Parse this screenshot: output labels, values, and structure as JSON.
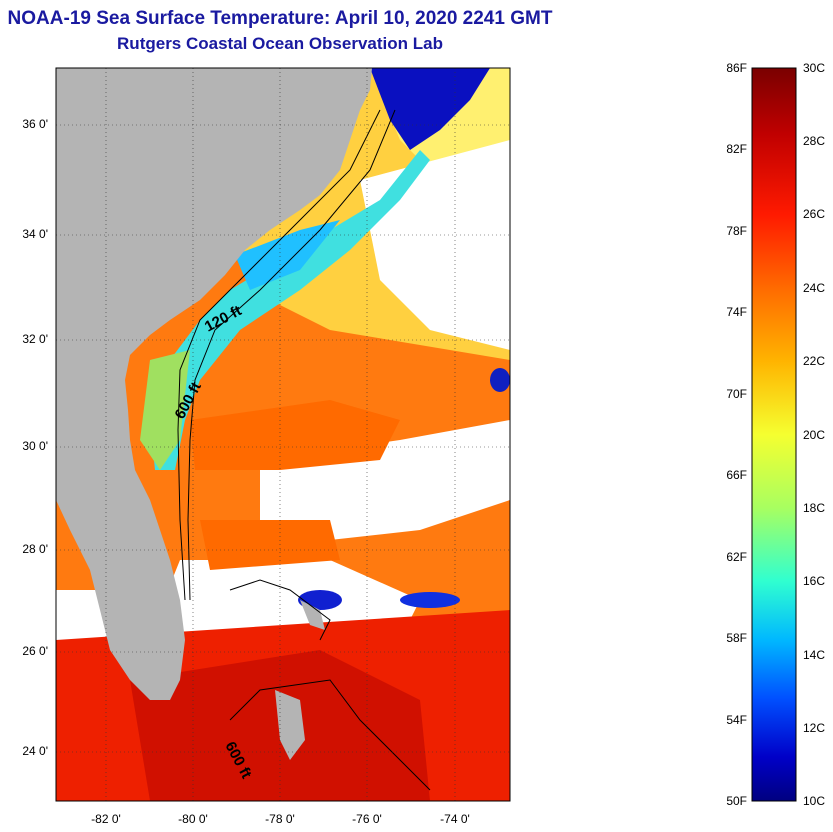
{
  "header": {
    "title": "NOAA-19 Sea Surface Temperature:  April 10, 2020 2241 GMT",
    "subtitle": "Rutgers Coastal Ocean Observation Lab"
  },
  "map": {
    "lat_ticks": [
      "36 0'",
      "34 0'",
      "32 0'",
      "30 0'",
      "28 0'",
      "26 0'",
      "24 0'"
    ],
    "lon_ticks": [
      "-82 0'",
      "-80 0'",
      "-78 0'",
      "-76 0'",
      "-74 0'"
    ],
    "contour_labels": [
      "120 ft",
      "600 ft",
      "600 ft"
    ],
    "land_color": "#b4b4b4",
    "cloud_color": "#ffffff"
  },
  "colorbar": {
    "fahrenheit_labels": [
      "86F",
      "82F",
      "78F",
      "74F",
      "70F",
      "66F",
      "62F",
      "58F",
      "54F",
      "50F"
    ],
    "celsius_labels": [
      "30C",
      "28C",
      "26C",
      "24C",
      "22C",
      "20C",
      "18C",
      "16C",
      "14C",
      "12C",
      "10C"
    ],
    "colors": [
      "#7a0000",
      "#c00000",
      "#ff2000",
      "#ff7000",
      "#ffb000",
      "#ffff30",
      "#a0ff60",
      "#30ffd0",
      "#00b0ff",
      "#0050ff",
      "#0000c0",
      "#000080"
    ]
  }
}
